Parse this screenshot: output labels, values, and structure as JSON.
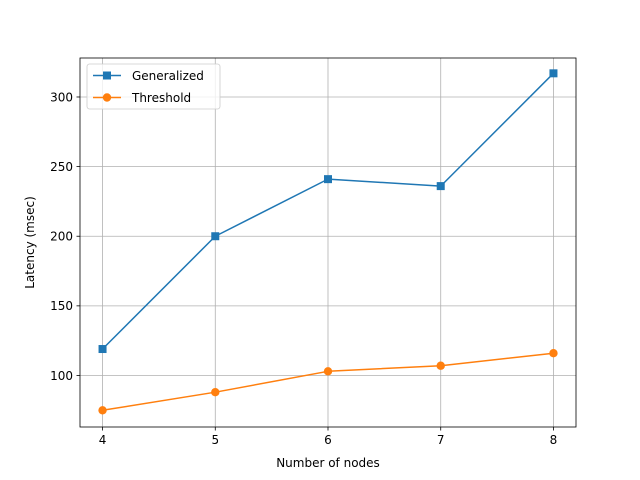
{
  "chart_data": {
    "type": "line",
    "title": "",
    "xlabel": "Number of nodes",
    "ylabel": "Latency (msec)",
    "x": [
      4,
      5,
      6,
      7,
      8
    ],
    "xlim": [
      3.8,
      8.2
    ],
    "ylim": [
      63,
      328
    ],
    "xticks": [
      4,
      5,
      6,
      7,
      8
    ],
    "yticks": [
      100,
      150,
      200,
      250,
      300
    ],
    "grid": true,
    "legend_position": "top-left",
    "series": [
      {
        "name": "Generalized",
        "values": [
          119,
          200,
          241,
          236,
          317
        ],
        "color": "#1f77b4",
        "marker": "square"
      },
      {
        "name": "Threshold",
        "values": [
          75,
          88,
          103,
          107,
          116
        ],
        "color": "#ff7f0e",
        "marker": "circle"
      }
    ]
  }
}
